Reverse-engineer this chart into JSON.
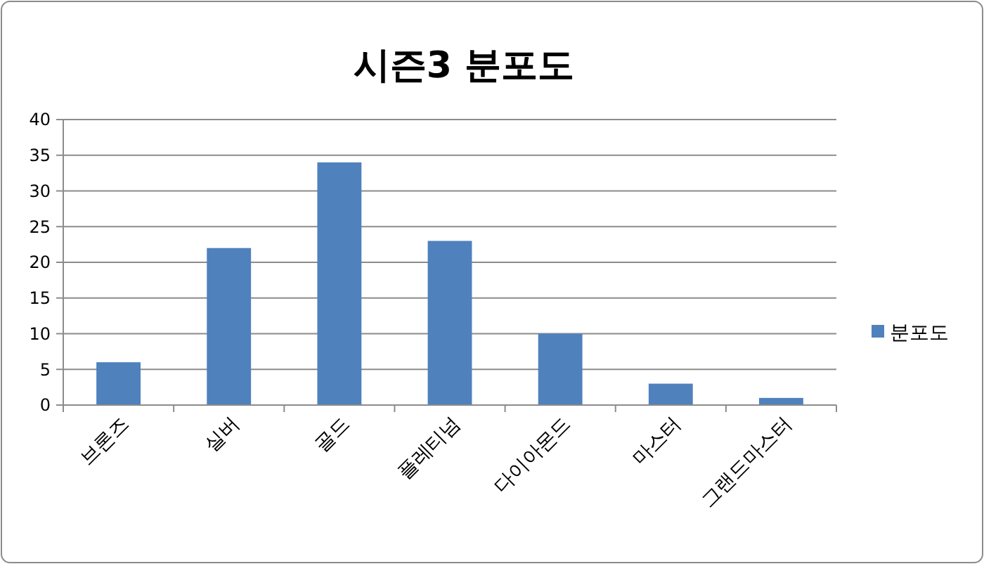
{
  "chart_data": {
    "type": "bar",
    "title": "시즌3 분포도",
    "categories": [
      "브론즈",
      "실버",
      "골드",
      "플레티넘",
      "다이아몬드",
      "마스터",
      "그랜드마스터"
    ],
    "series": [
      {
        "name": "분포도",
        "color": "#4f81bd",
        "values": [
          6,
          22,
          34,
          23,
          10,
          3,
          1
        ]
      }
    ],
    "ylim": [
      0,
      40
    ],
    "yticks": [
      0,
      5,
      10,
      15,
      20,
      25,
      30,
      35,
      40
    ],
    "grid": "y",
    "legend": "right"
  }
}
